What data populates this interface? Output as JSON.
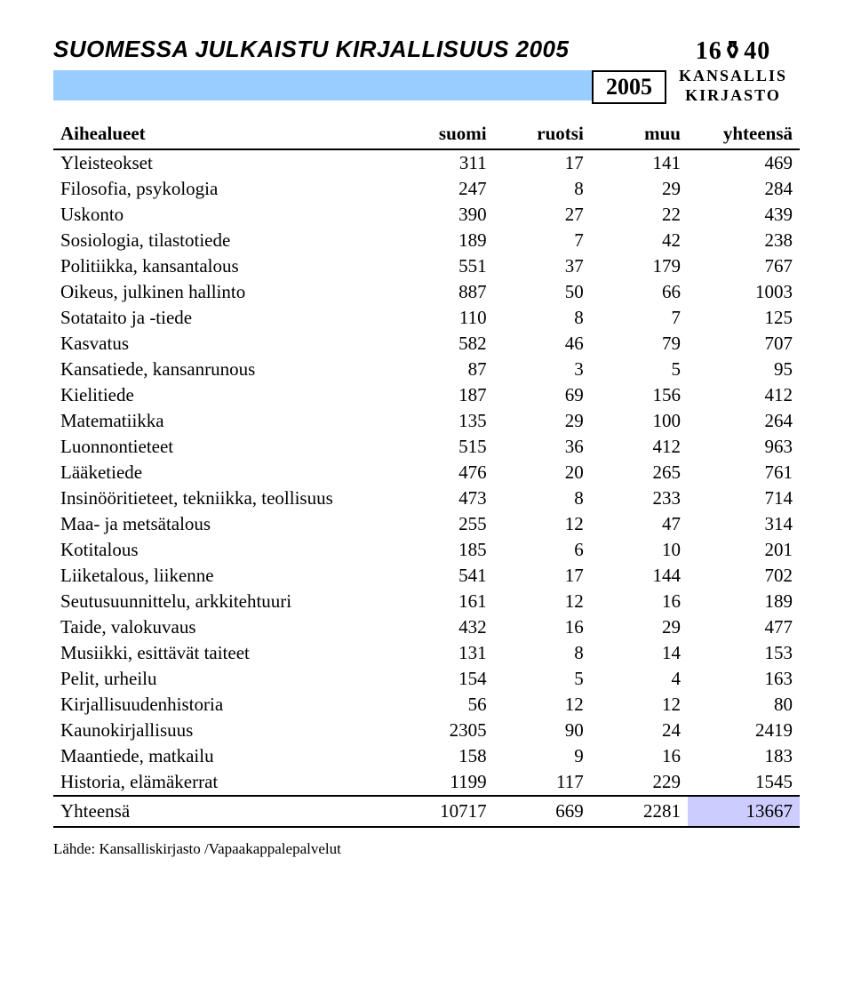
{
  "title": "SUOMESSA JULKAISTU KIRJALLISUUS 2005",
  "year_box": "2005",
  "logo": {
    "top": "16⚱40",
    "line1": "KANSALLIS",
    "line2": "KIRJASTO"
  },
  "table": {
    "columns": [
      "Aihealueet",
      "suomi",
      "ruotsi",
      "muu",
      "yhteensä"
    ],
    "rows": [
      [
        "Yleisteokset",
        "311",
        "17",
        "141",
        "469"
      ],
      [
        "Filosofia, psykologia",
        "247",
        "8",
        "29",
        "284"
      ],
      [
        "Uskonto",
        "390",
        "27",
        "22",
        "439"
      ],
      [
        "Sosiologia, tilastotiede",
        "189",
        "7",
        "42",
        "238"
      ],
      [
        "Politiikka, kansantalous",
        "551",
        "37",
        "179",
        "767"
      ],
      [
        "Oikeus, julkinen hallinto",
        "887",
        "50",
        "66",
        "1003"
      ],
      [
        "Sotataito ja -tiede",
        "110",
        "8",
        "7",
        "125"
      ],
      [
        "Kasvatus",
        "582",
        "46",
        "79",
        "707"
      ],
      [
        "Kansatiede, kansanrunous",
        "87",
        "3",
        "5",
        "95"
      ],
      [
        "Kielitiede",
        "187",
        "69",
        "156",
        "412"
      ],
      [
        "Matematiikka",
        "135",
        "29",
        "100",
        "264"
      ],
      [
        "Luonnontieteet",
        "515",
        "36",
        "412",
        "963"
      ],
      [
        "Lääketiede",
        "476",
        "20",
        "265",
        "761"
      ],
      [
        "Insinööritieteet, tekniikka, teollisuus",
        "473",
        "8",
        "233",
        "714"
      ],
      [
        "Maa- ja metsätalous",
        "255",
        "12",
        "47",
        "314"
      ],
      [
        "Kotitalous",
        "185",
        "6",
        "10",
        "201"
      ],
      [
        "Liiketalous, liikenne",
        "541",
        "17",
        "144",
        "702"
      ],
      [
        "Seutusuunnittelu, arkkitehtuuri",
        "161",
        "12",
        "16",
        "189"
      ],
      [
        "Taide, valokuvaus",
        "432",
        "16",
        "29",
        "477"
      ],
      [
        "Musiikki, esittävät taiteet",
        "131",
        "8",
        "14",
        "153"
      ],
      [
        "Pelit, urheilu",
        "154",
        "5",
        "4",
        "163"
      ],
      [
        "Kirjallisuudenhistoria",
        "56",
        "12",
        "12",
        "80"
      ],
      [
        "Kaunokirjallisuus",
        "2305",
        "90",
        "24",
        "2419"
      ],
      [
        "Maantiede, matkailu",
        "158",
        "9",
        "16",
        "183"
      ],
      [
        "Historia, elämäkerrat",
        "1199",
        "117",
        "229",
        "1545"
      ]
    ],
    "total": [
      "Yhteensä",
      "10717",
      "669",
      "2281",
      "13667"
    ]
  },
  "source": "Lähde: Kansalliskirjasto /Vapaakappalepalvelut"
}
